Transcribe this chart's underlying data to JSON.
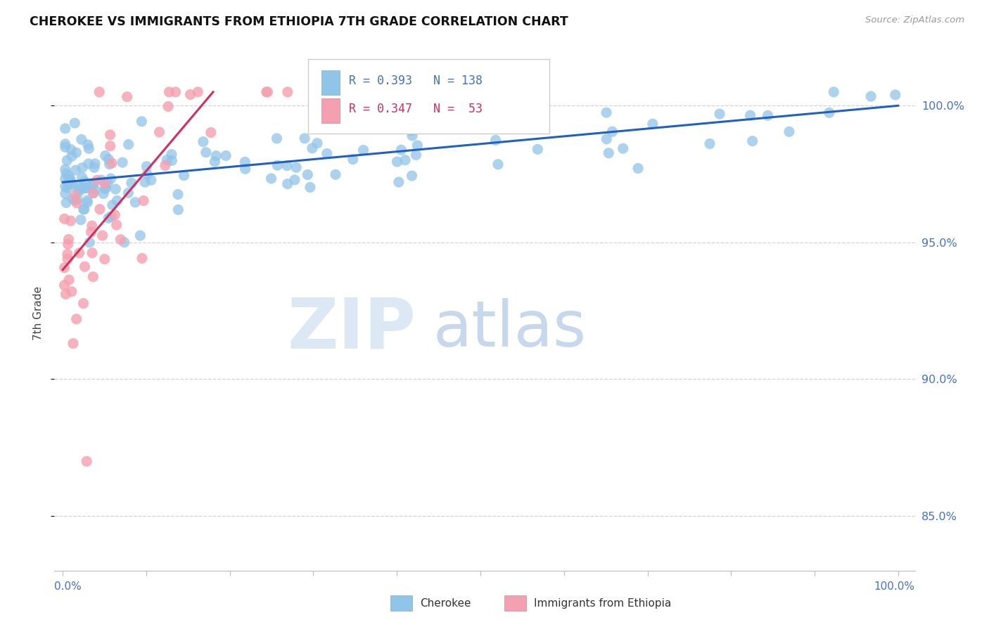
{
  "title": "CHEROKEE VS IMMIGRANTS FROM ETHIOPIA 7TH GRADE CORRELATION CHART",
  "source": "Source: ZipAtlas.com",
  "ylabel": "7th Grade",
  "xlim": [
    -1.0,
    102.0
  ],
  "ylim": [
    83.0,
    101.8
  ],
  "yticks": [
    85.0,
    90.0,
    95.0,
    100.0
  ],
  "legend_r1": "R = 0.393",
  "legend_n1": "N = 138",
  "legend_r2": "R = 0.347",
  "legend_n2": "N =  53",
  "cherokee_color": "#90c4e8",
  "ethiopia_color": "#f4a0b0",
  "cherokee_line_color": "#2060c0",
  "ethiopia_line_color": "#d03060",
  "background_color": "#ffffff",
  "grid_color": "#d0d0d0",
  "axis_color": "#4472C4",
  "title_color": "#111111",
  "cherokee_trend_x0": 0.0,
  "cherokee_trend_y0": 97.2,
  "cherokee_trend_x1": 100.0,
  "cherokee_trend_y1": 100.0,
  "ethiopia_trend_x0": 0.0,
  "ethiopia_trend_y0": 94.0,
  "ethiopia_trend_x1": 18.0,
  "ethiopia_trend_y1": 100.5
}
